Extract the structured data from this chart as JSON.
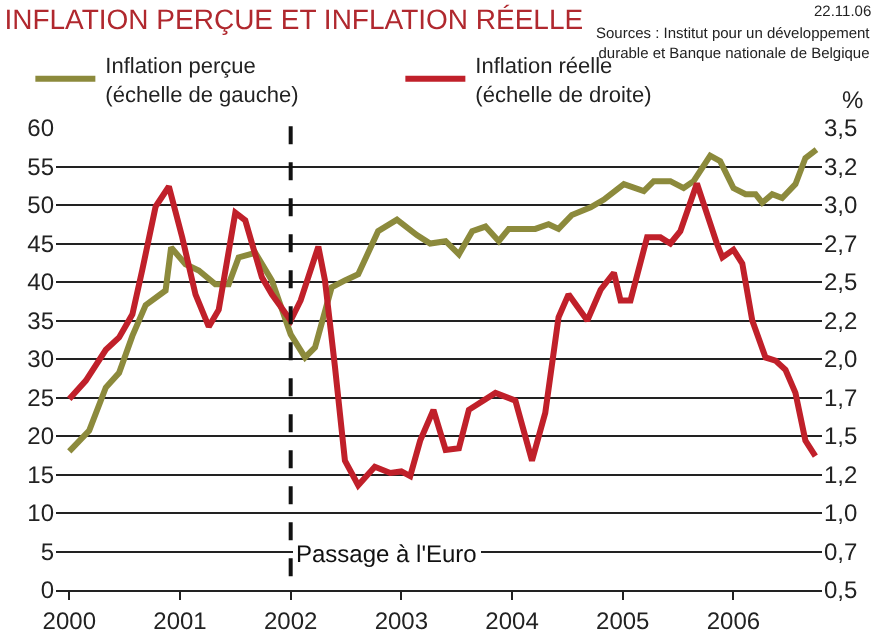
{
  "chart_data": {
    "type": "line",
    "title": "INFLATION PERÇUE ET INFLATION RÉELLE",
    "annotations": [
      "22.11.06",
      "Sources : Institut pour un développement\ndurable et Banque nationale de Belgique"
    ],
    "y2label": "%",
    "xlim": [
      1999.88,
      2006.8
    ],
    "xticks": [
      2000,
      2001,
      2002,
      2003,
      2004,
      2005,
      2006
    ],
    "ylim": [
      0,
      60
    ],
    "yticks": [
      0,
      5,
      10,
      15,
      20,
      25,
      30,
      35,
      40,
      45,
      50,
      55,
      60
    ],
    "y2lim": [
      0.5,
      3.5
    ],
    "y2ticks": [
      {
        "value": 0.5,
        "label": "0,5"
      },
      {
        "value": 0.75,
        "label": "0,7"
      },
      {
        "value": 1,
        "label": "1,0"
      },
      {
        "value": 1.25,
        "label": "1,2"
      },
      {
        "value": 1.5,
        "label": "1,5"
      },
      {
        "value": 1.75,
        "label": "1,7"
      },
      {
        "value": 2,
        "label": "2,0"
      },
      {
        "value": 2.25,
        "label": "2,2"
      },
      {
        "value": 2.5,
        "label": "2,5"
      },
      {
        "value": 2.75,
        "label": "2,7"
      },
      {
        "value": 3,
        "label": "3,0"
      },
      {
        "value": 3.25,
        "label": "3,2"
      },
      {
        "value": 3.5,
        "label": "3,5"
      }
    ],
    "grid": "y",
    "legend": "top left",
    "marker": "none",
    "line_style": "solid",
    "ref_lines": [
      {
        "axis": "x",
        "value": 2002,
        "label": "Passage à l'Euro",
        "color": "#111111",
        "line_style": "dashed"
      }
    ],
    "series": [
      {
        "name": "Inflation perçue\n(échelle de gauche)",
        "color": "#8c8a3c",
        "x": [
          2000.0,
          2000.18,
          2000.33,
          2000.45,
          2000.57,
          2000.69,
          2000.87,
          2000.92,
          2001.05,
          2001.17,
          2001.32,
          2001.44,
          2001.53,
          2001.68,
          2001.83,
          2002.0,
          2002.13,
          2002.22,
          2002.37,
          2002.49,
          2002.61,
          2002.79,
          2002.96,
          2003.14,
          2003.26,
          2003.4,
          2003.52,
          2003.64,
          2003.76,
          2003.88,
          2003.97,
          2004.21,
          2004.33,
          2004.42,
          2004.54,
          2004.71,
          2004.83,
          2005.01,
          2005.19,
          2005.28,
          2005.43,
          2005.55,
          2005.64,
          2005.79,
          2005.88,
          2006.0,
          2006.11,
          2006.2,
          2006.26,
          2006.35,
          2006.44,
          2006.56,
          2006.65,
          2006.75
        ],
        "values": [
          18,
          20.7,
          26.3,
          28.2,
          33,
          37,
          38.9,
          44.5,
          42.3,
          41.5,
          39.7,
          39.7,
          43.2,
          43.8,
          40.2,
          33.2,
          30.2,
          31.5,
          39.3,
          40.2,
          41,
          46.6,
          48.1,
          46.1,
          45,
          45.3,
          43.6,
          46.6,
          47.2,
          45.3,
          46.9,
          46.9,
          47.5,
          46.9,
          48.7,
          49.7,
          50.7,
          52.7,
          51.8,
          53.1,
          53.1,
          52.2,
          53.1,
          56.4,
          55.7,
          52.2,
          51.4,
          51.4,
          50.3,
          51.4,
          50.9,
          52.7,
          56.1,
          57.2
        ]
      },
      {
        "name": "Inflation réelle\n(échelle de droite)",
        "color": "#c0202a",
        "axis": "y2",
        "x": [
          2000.0,
          2000.15,
          2000.33,
          2000.45,
          2000.57,
          2000.66,
          2000.78,
          2000.9,
          2001.02,
          2001.14,
          2001.26,
          2001.35,
          2001.5,
          2001.59,
          2001.74,
          2001.83,
          2002.0,
          2002.09,
          2002.25,
          2002.31,
          2002.4,
          2002.49,
          2002.61,
          2002.76,
          2002.9,
          2003.0,
          2003.08,
          2003.17,
          2003.29,
          2003.4,
          2003.52,
          2003.61,
          2003.85,
          2004.03,
          2004.18,
          2004.3,
          2004.42,
          2004.51,
          2004.68,
          2004.8,
          2004.92,
          2004.98,
          2005.07,
          2005.22,
          2005.34,
          2005.43,
          2005.52,
          2005.67,
          2005.85,
          2005.9,
          2006.0,
          2006.08,
          2006.17,
          2006.29,
          2006.38,
          2006.47,
          2006.56,
          2006.65,
          2006.74
        ],
        "values": [
          1.74,
          1.86,
          2.06,
          2.14,
          2.29,
          2.58,
          2.99,
          3.12,
          2.79,
          2.42,
          2.21,
          2.32,
          2.95,
          2.9,
          2.53,
          2.42,
          2.25,
          2.38,
          2.73,
          2.51,
          1.95,
          1.34,
          1.18,
          1.3,
          1.26,
          1.27,
          1.24,
          1.47,
          1.67,
          1.41,
          1.42,
          1.67,
          1.78,
          1.73,
          1.34,
          1.65,
          2.27,
          2.42,
          2.25,
          2.45,
          2.56,
          2.38,
          2.38,
          2.79,
          2.79,
          2.75,
          2.83,
          3.14,
          2.75,
          2.66,
          2.71,
          2.62,
          2.25,
          2.01,
          1.99,
          1.93,
          1.78,
          1.47,
          1.37
        ]
      }
    ]
  }
}
